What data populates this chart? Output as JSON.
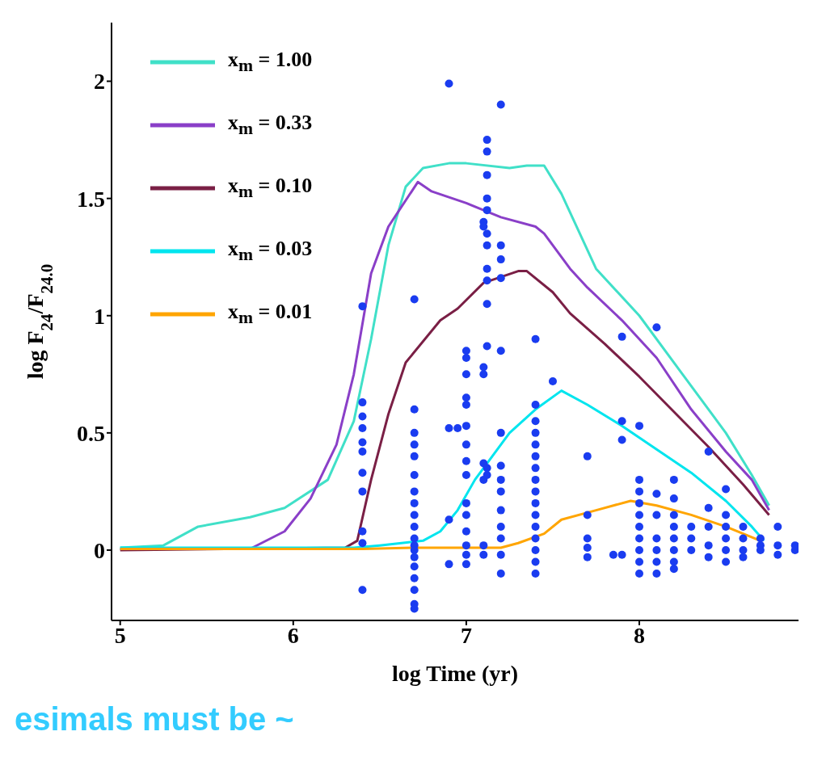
{
  "chart_data": {
    "type": "line",
    "xlabel": "log Time (yr)",
    "ylabel": "log F$_{24}$/F$_{24.0}$",
    "xlim": [
      4.95,
      8.92
    ],
    "ylim": [
      -0.3,
      2.25
    ],
    "xticks": [
      5,
      6,
      7,
      8
    ],
    "yticks": [
      0,
      0.5,
      1,
      1.5,
      2
    ],
    "grid": false,
    "legend": "top left",
    "line_style": "solid",
    "marker": "none",
    "annotations": [
      "esimals must be ~"
    ],
    "series": [
      {
        "name": "x$_{m}$ = 1.00",
        "color": "#40e0c8",
        "x": [
          5,
          5.25,
          5.45,
          5.75,
          5.95,
          6.2,
          6.35,
          6.45,
          6.55,
          6.65,
          6.75,
          6.9,
          7.0,
          7.25,
          7.35,
          7.45,
          7.55,
          7.75,
          8.0,
          8.25,
          8.5,
          8.65,
          8.75
        ],
        "values": [
          0.01,
          0.02,
          0.1,
          0.14,
          0.18,
          0.3,
          0.55,
          0.9,
          1.3,
          1.55,
          1.63,
          1.65,
          1.65,
          1.63,
          1.64,
          1.64,
          1.52,
          1.2,
          1.0,
          0.75,
          0.5,
          0.32,
          0.19
        ]
      },
      {
        "name": "x$_{m}$ = 0.33",
        "color": "#8a3fc8",
        "x": [
          5,
          5.5,
          5.75,
          5.95,
          6.1,
          6.25,
          6.35,
          6.45,
          6.55,
          6.72,
          6.8,
          7.0,
          7.2,
          7.4,
          7.45,
          7.6,
          7.7,
          7.9,
          8.1,
          8.3,
          8.5,
          8.65,
          8.75
        ],
        "values": [
          0.005,
          0.005,
          0.005,
          0.08,
          0.22,
          0.45,
          0.75,
          1.18,
          1.38,
          1.57,
          1.53,
          1.48,
          1.42,
          1.38,
          1.35,
          1.2,
          1.12,
          0.98,
          0.82,
          0.6,
          0.42,
          0.3,
          0.17
        ]
      },
      {
        "name": "x$_{m}$ = 0.10",
        "color": "#7a1f45",
        "x": [
          5,
          6.3,
          6.37,
          6.45,
          6.55,
          6.65,
          6.85,
          6.95,
          7.1,
          7.3,
          7.35,
          7.5,
          7.6,
          7.8,
          8.0,
          8.2,
          8.4,
          8.6,
          8.75
        ],
        "values": [
          0,
          0.01,
          0.04,
          0.3,
          0.58,
          0.8,
          0.98,
          1.03,
          1.14,
          1.19,
          1.19,
          1.1,
          1.01,
          0.88,
          0.74,
          0.59,
          0.44,
          0.28,
          0.15
        ]
      },
      {
        "name": "x$_{m}$ = 0.03",
        "color": "#00e5ee",
        "x": [
          5,
          6.35,
          6.5,
          6.75,
          6.85,
          6.95,
          7.05,
          7.15,
          7.25,
          7.4,
          7.55,
          7.7,
          7.9,
          8.1,
          8.3,
          8.5,
          8.65,
          8.72
        ],
        "values": [
          0.01,
          0.01,
          0.02,
          0.04,
          0.08,
          0.17,
          0.3,
          0.4,
          0.5,
          0.6,
          0.68,
          0.62,
          0.53,
          0.43,
          0.33,
          0.21,
          0.1,
          0.04
        ]
      },
      {
        "name": "x$_{m}$ = 0.01",
        "color": "#ffa500",
        "x": [
          5,
          6.4,
          6.7,
          7.0,
          7.2,
          7.3,
          7.45,
          7.55,
          7.75,
          7.95,
          8.1,
          8.3,
          8.5,
          8.7
        ],
        "values": [
          0.005,
          0.005,
          0.01,
          0.01,
          0.01,
          0.03,
          0.07,
          0.13,
          0.17,
          0.21,
          0.19,
          0.15,
          0.1,
          0.04
        ]
      },
      {
        "type": "scatter",
        "color": "#1a3cf0",
        "marker": "circle",
        "x": [
          6.4,
          6.4,
          6.4,
          6.4,
          6.4,
          6.4,
          6.4,
          6.4,
          6.4,
          6.4,
          6.4,
          6.7,
          6.7,
          6.7,
          6.7,
          6.7,
          6.7,
          6.7,
          6.7,
          6.7,
          6.7,
          6.7,
          6.7,
          6.7,
          6.7,
          6.7,
          6.7,
          6.7,
          6.7,
          6.7,
          6.9,
          6.9,
          6.9,
          6.9,
          6.95,
          7.0,
          7.0,
          7.0,
          7.0,
          7.0,
          7.0,
          7.0,
          7.0,
          7.0,
          7.0,
          7.0,
          7.0,
          7.0,
          7.0,
          7.0,
          7.1,
          7.1,
          7.1,
          7.1,
          7.1,
          7.1,
          7.1,
          7.1,
          7.12,
          7.12,
          7.12,
          7.12,
          7.12,
          7.12,
          7.12,
          7.12,
          7.12,
          7.12,
          7.12,
          7.12,
          7.12,
          7.2,
          7.2,
          7.2,
          7.2,
          7.2,
          7.2,
          7.2,
          7.2,
          7.2,
          7.2,
          7.2,
          7.2,
          7.2,
          7.2,
          7.4,
          7.4,
          7.4,
          7.4,
          7.4,
          7.4,
          7.4,
          7.4,
          7.4,
          7.4,
          7.4,
          7.4,
          7.4,
          7.4,
          7.4,
          7.4,
          7.5,
          7.7,
          7.7,
          7.7,
          7.7,
          7.7,
          7.85,
          7.9,
          7.9,
          7.9,
          7.9,
          8.0,
          8.0,
          8.0,
          8.0,
          8.0,
          8.0,
          8.0,
          8.0,
          8.0,
          8.0,
          8.1,
          8.1,
          8.1,
          8.1,
          8.1,
          8.1,
          8.1,
          8.2,
          8.2,
          8.2,
          8.2,
          8.2,
          8.2,
          8.2,
          8.2,
          8.3,
          8.3,
          8.3,
          8.4,
          8.4,
          8.4,
          8.4,
          8.4,
          8.5,
          8.5,
          8.5,
          8.5,
          8.5,
          8.5,
          8.6,
          8.6,
          8.6,
          8.6,
          8.7,
          8.7,
          8.7,
          8.8,
          8.8,
          8.8,
          8.9,
          8.9
        ],
        "values": [
          1.04,
          0.63,
          0.57,
          0.52,
          0.46,
          0.42,
          0.33,
          0.25,
          0.08,
          0.03,
          -0.17,
          1.07,
          0.6,
          0.5,
          0.45,
          0.4,
          0.32,
          0.25,
          0.2,
          0.15,
          0.1,
          0.05,
          0.02,
          0,
          -0.03,
          -0.07,
          -0.12,
          -0.17,
          -0.23,
          -0.25,
          1.99,
          0.52,
          0.13,
          -0.06,
          0.52,
          0.85,
          0.82,
          0.75,
          0.65,
          0.62,
          0.53,
          0.45,
          0.38,
          0.32,
          0.2,
          0.15,
          0.08,
          0.02,
          -0.02,
          -0.06,
          1.4,
          1.38,
          0.78,
          0.75,
          0.37,
          0.3,
          0.02,
          -0.02,
          1.75,
          1.7,
          1.6,
          1.5,
          1.45,
          1.35,
          1.3,
          1.2,
          1.15,
          1.05,
          0.87,
          0.35,
          0.32,
          1.9,
          1.3,
          1.24,
          1.16,
          0.85,
          0.5,
          0.36,
          0.3,
          0.25,
          0.17,
          0.1,
          0.05,
          -0.02,
          -0.1,
          0.9,
          0.62,
          0.55,
          0.5,
          0.45,
          0.4,
          0.35,
          0.3,
          0.25,
          0.2,
          0.15,
          0.1,
          0.05,
          0,
          -0.05,
          -0.1,
          0.72,
          0.4,
          0.15,
          0.05,
          0.01,
          -0.03,
          -0.02,
          0.91,
          0.55,
          0.47,
          -0.02,
          0.53,
          0.3,
          0.25,
          0.2,
          0.15,
          0.1,
          0.05,
          0,
          -0.05,
          -0.1,
          0.95,
          0.24,
          0.15,
          0.05,
          0,
          -0.05,
          -0.1,
          0.3,
          0.22,
          0.15,
          0.1,
          0.05,
          0,
          -0.05,
          -0.08,
          0.1,
          0.05,
          0,
          0.42,
          0.18,
          0.1,
          0.02,
          -0.03,
          0.26,
          0.15,
          0.1,
          0.05,
          0,
          -0.05,
          0.1,
          0.05,
          0,
          -0.03,
          0.05,
          0.02,
          0,
          0.1,
          0.02,
          -0.02,
          0,
          0.02
        ]
      }
    ]
  }
}
